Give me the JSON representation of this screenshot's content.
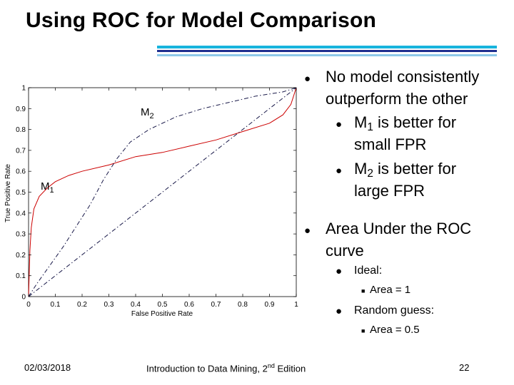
{
  "slide": {
    "title": "Using ROC for Model Comparison",
    "footer_date": "02/03/2018",
    "footer_center_prefix": "Introduction to Data Mining, 2",
    "footer_center_sup": "nd",
    "footer_center_suffix": " Edition",
    "page_number": "22"
  },
  "bullets": {
    "b1_line1": "No model consistently",
    "b1_line2": "outperform the other",
    "b1a_m": "M",
    "b1a_sub": "1",
    "b1a_rest": " is better for",
    "b1a_line2": "small FPR",
    "b1b_m": "M",
    "b1b_sub": "2",
    "b1b_rest": " is better for",
    "b1b_line2": "large FPR",
    "b2_line1": "Area Under the ROC",
    "b2_line2": "curve",
    "ideal": "Ideal:",
    "ideal_area": "Area = 1",
    "random": "Random guess:",
    "random_area": "Area = 0.5"
  },
  "chart_data": {
    "type": "line",
    "xlabel": "False Positive Rate",
    "ylabel": "True Positive Rate",
    "xlim": [
      0,
      1
    ],
    "ylim": [
      0,
      1
    ],
    "x_ticks": [
      "0",
      "0.1",
      "0.2",
      "0.3",
      "0.4",
      "0.5",
      "0.6",
      "0.7",
      "0.8",
      "0.9",
      "1"
    ],
    "y_ticks": [
      "0",
      "0.1",
      "0.2",
      "0.3",
      "0.4",
      "0.5",
      "0.6",
      "0.7",
      "0.8",
      "0.9",
      "1"
    ],
    "series": [
      {
        "name": "M1",
        "label_m": "M",
        "label_sub": "1",
        "style": "solid",
        "color": "#cc0000",
        "x": [
          0,
          0.005,
          0.01,
          0.02,
          0.04,
          0.07,
          0.1,
          0.15,
          0.2,
          0.3,
          0.4,
          0.5,
          0.6,
          0.7,
          0.8,
          0.9,
          0.95,
          0.98,
          1.0
        ],
        "y": [
          0,
          0.22,
          0.33,
          0.42,
          0.48,
          0.52,
          0.55,
          0.58,
          0.6,
          0.63,
          0.67,
          0.69,
          0.72,
          0.75,
          0.79,
          0.83,
          0.87,
          0.92,
          1.0
        ]
      },
      {
        "name": "M2",
        "label_m": "M",
        "label_sub": "2",
        "style": "dashdot",
        "color": "#1a1a4a",
        "x": [
          0,
          0.03,
          0.08,
          0.13,
          0.18,
          0.23,
          0.28,
          0.33,
          0.38,
          0.45,
          0.55,
          0.65,
          0.75,
          0.85,
          0.95,
          1.0
        ],
        "y": [
          0,
          0.06,
          0.15,
          0.24,
          0.34,
          0.44,
          0.56,
          0.66,
          0.74,
          0.8,
          0.86,
          0.9,
          0.93,
          0.96,
          0.98,
          1.0
        ]
      },
      {
        "name": "Random",
        "style": "dashdot",
        "color": "#1a1a4a",
        "x": [
          0,
          1
        ],
        "y": [
          0,
          1
        ]
      }
    ]
  }
}
